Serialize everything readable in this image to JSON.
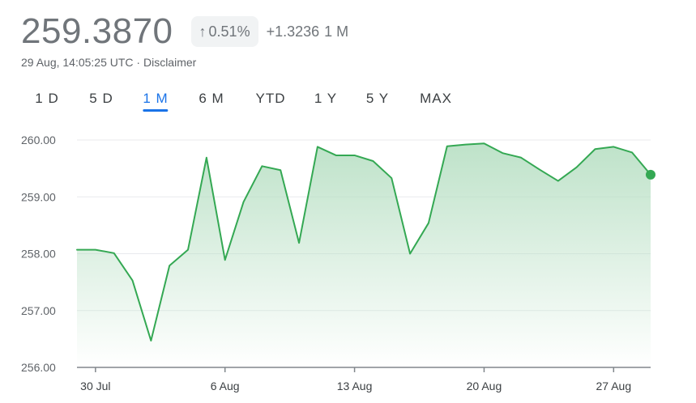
{
  "header": {
    "price": "259.3870",
    "change_percent": "0.51%",
    "change_value": "+1.3236",
    "change_period": "1 M",
    "timestamp": "29 Aug, 14:05:25 UTC · Disclaimer",
    "arrow_icon": "arrow-up-icon"
  },
  "ranges": [
    {
      "label": "1 D",
      "active": false
    },
    {
      "label": "5 D",
      "active": false
    },
    {
      "label": "1 M",
      "active": true
    },
    {
      "label": "6 M",
      "active": false
    },
    {
      "label": "YTD",
      "active": false
    },
    {
      "label": "1 Y",
      "active": false
    },
    {
      "label": "5 Y",
      "active": false
    },
    {
      "label": "MAX",
      "active": false
    }
  ],
  "colors": {
    "line": "#34a853",
    "fill_top": "#b7dfc3",
    "grid": "#e8eaed",
    "active_tab": "#1a73e8"
  },
  "chart_data": {
    "type": "area",
    "ylim": [
      256,
      260
    ],
    "yticks": [
      "256.00",
      "257.00",
      "258.00",
      "259.00",
      "260.00"
    ],
    "ytick_values": [
      256,
      257,
      258,
      259,
      260
    ],
    "xticks": [
      "30 Jul",
      "6 Aug",
      "13 Aug",
      "20 Aug",
      "27 Aug"
    ],
    "xtick_dates": [
      "2024-07-30",
      "2024-08-06",
      "2024-08-13",
      "2024-08-20",
      "2024-08-27"
    ],
    "grid": true,
    "series": [
      {
        "x": [
          "2024-07-29",
          "2024-07-30",
          "2024-07-31",
          "2024-08-01",
          "2024-08-02",
          "2024-08-03",
          "2024-08-04",
          "2024-08-05",
          "2024-08-06",
          "2024-08-07",
          "2024-08-08",
          "2024-08-09",
          "2024-08-10",
          "2024-08-11",
          "2024-08-12",
          "2024-08-13",
          "2024-08-14",
          "2024-08-15",
          "2024-08-16",
          "2024-08-17",
          "2024-08-18",
          "2024-08-19",
          "2024-08-20",
          "2024-08-21",
          "2024-08-22",
          "2024-08-23",
          "2024-08-24",
          "2024-08-25",
          "2024-08-26",
          "2024-08-27",
          "2024-08-28",
          "2024-08-29"
        ],
        "y": [
          258.07,
          258.07,
          258.01,
          257.53,
          256.47,
          257.79,
          258.07,
          259.69,
          257.89,
          258.91,
          259.54,
          259.47,
          258.19,
          259.88,
          259.73,
          259.73,
          259.63,
          259.33,
          258.0,
          258.54,
          259.89,
          259.92,
          259.94,
          259.77,
          259.69,
          259.48,
          259.28,
          259.52,
          259.84,
          259.88,
          259.78,
          259.39
        ]
      }
    ]
  }
}
